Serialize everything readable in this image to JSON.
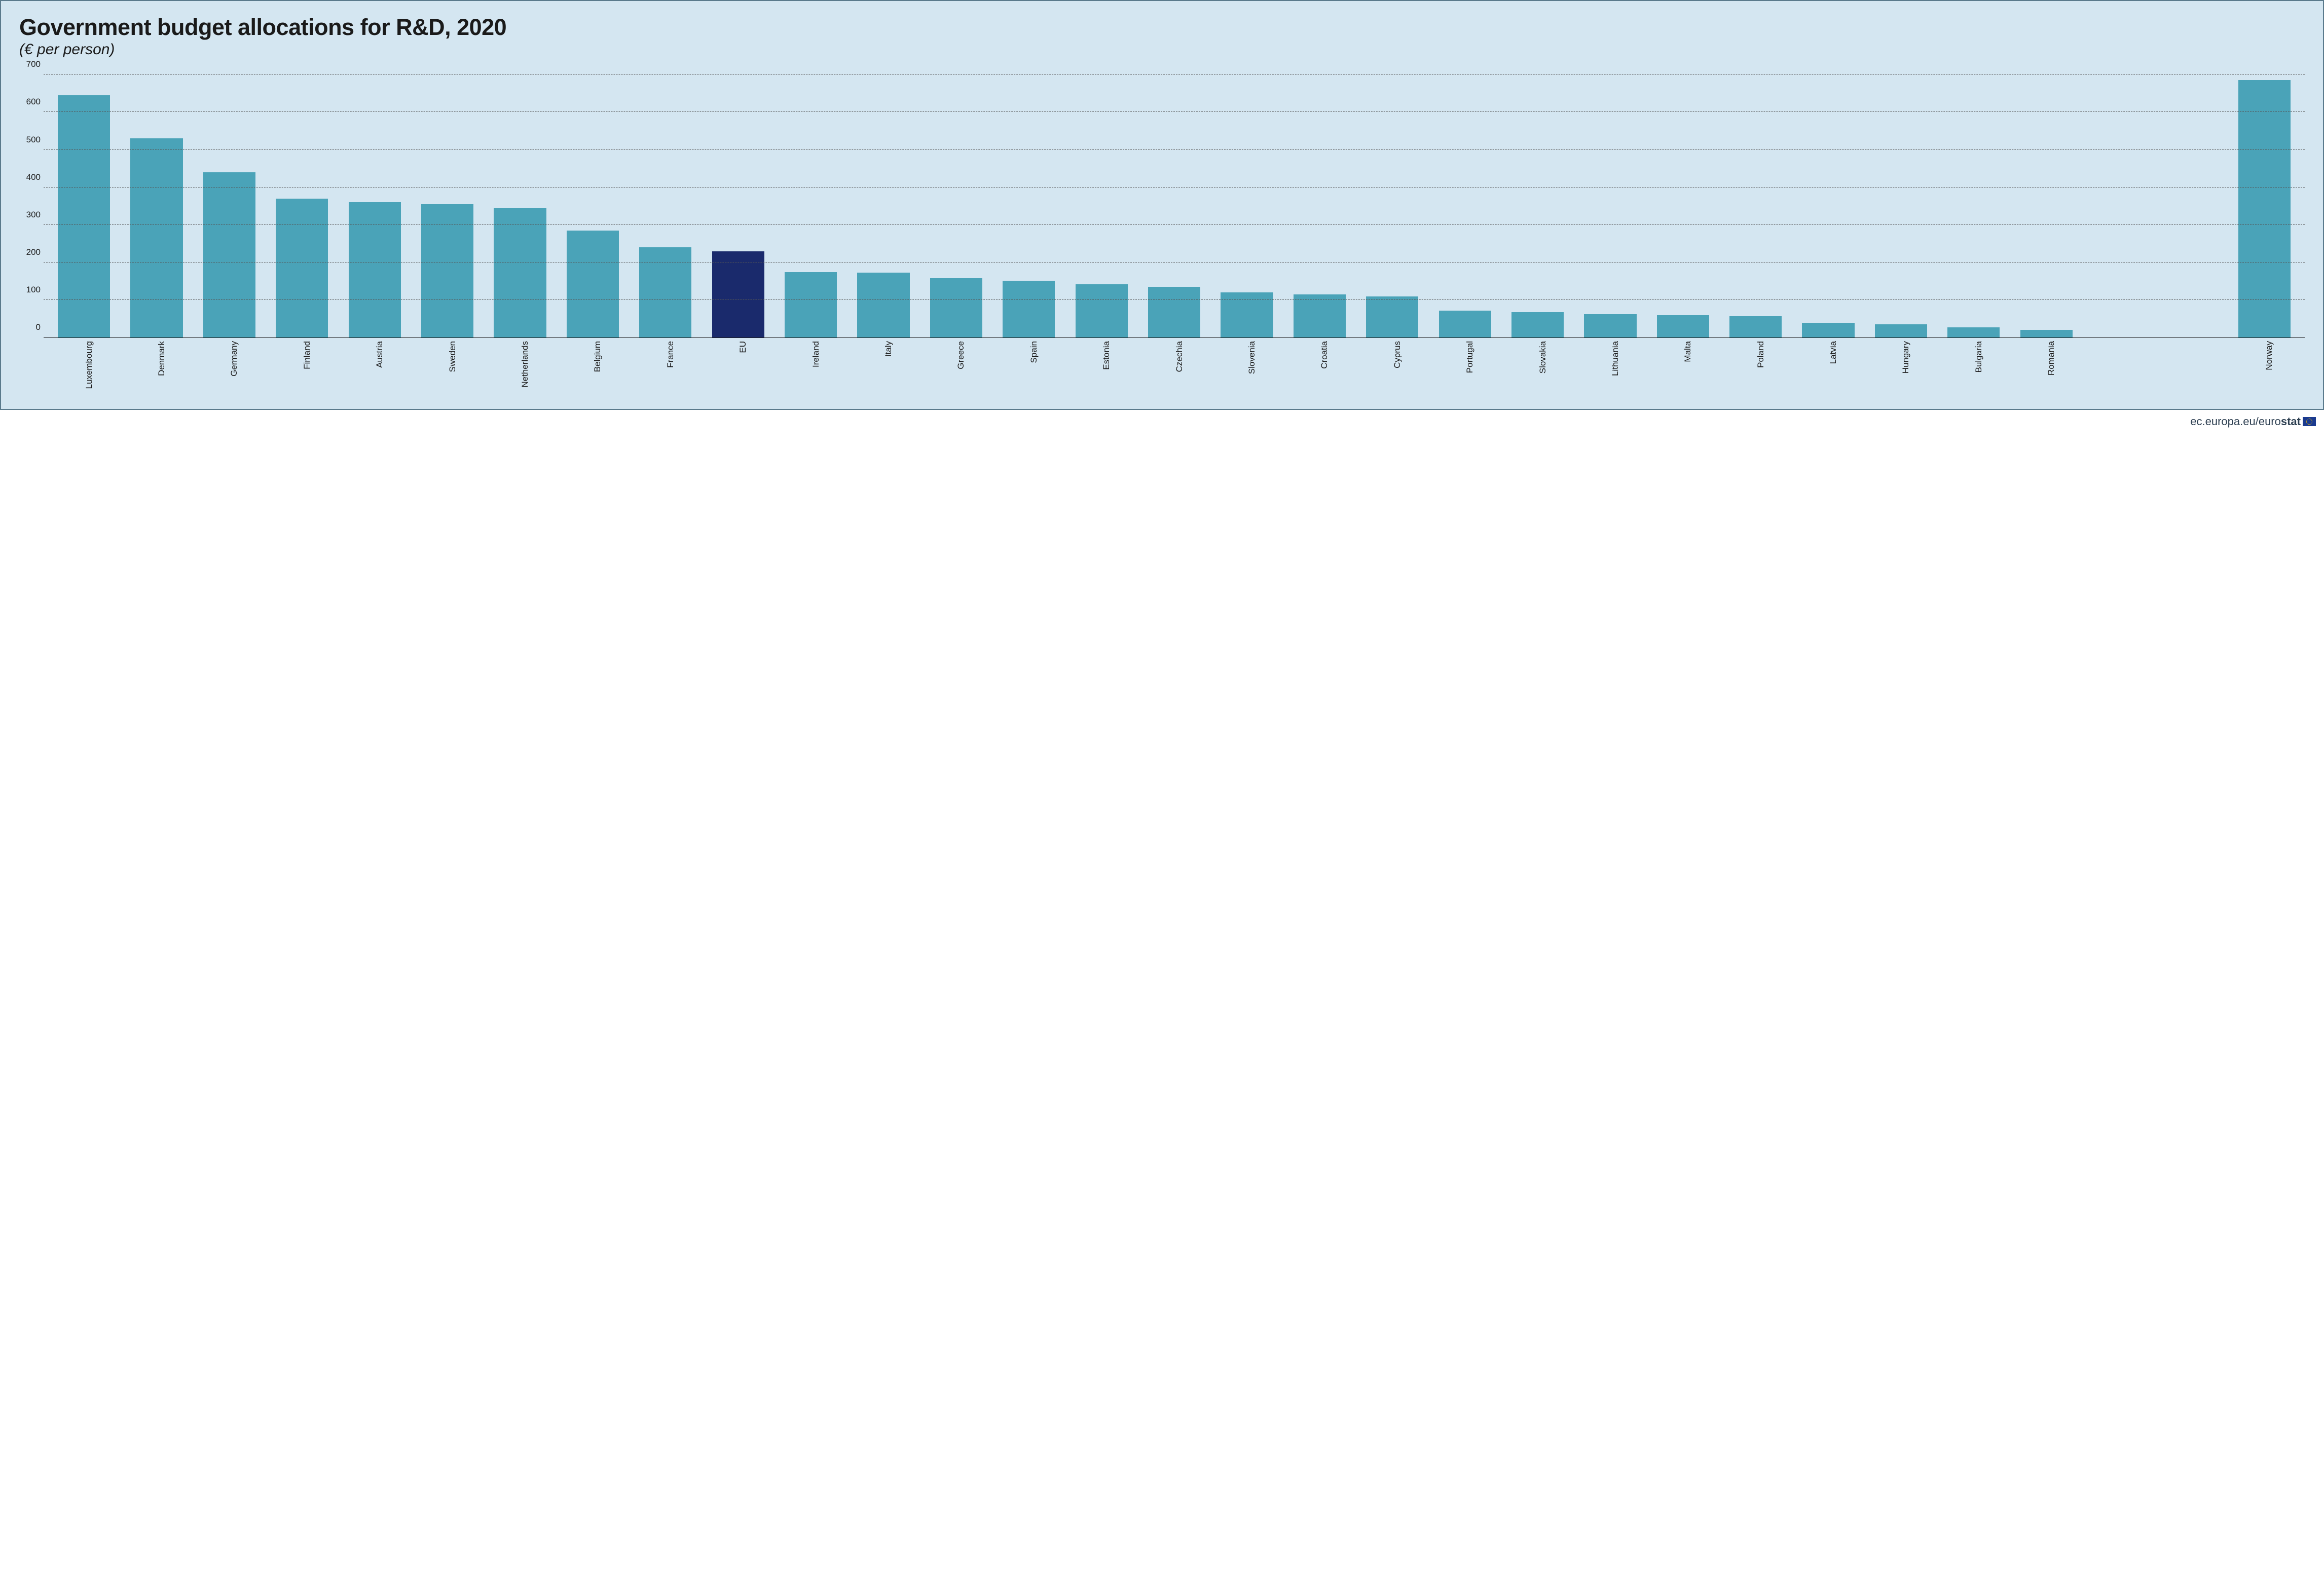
{
  "chart": {
    "type": "bar",
    "title": "Government budget allocations for R&D, 2020",
    "subtitle": "(€ per person)",
    "title_fontsize": 45,
    "subtitle_fontsize": 30,
    "background_color": "#d4e6f1",
    "border_color": "#5a7a8c",
    "axis_color": "#1a1a1a",
    "grid_color": "#555555",
    "grid_dash": "dashed",
    "label_fontsize": 17,
    "ylim": [
      0,
      700
    ],
    "ytick_step": 100,
    "yticks": [
      0,
      100,
      200,
      300,
      400,
      500,
      600,
      700
    ],
    "bar_width": 0.72,
    "default_bar_color": "#4aa3b8",
    "highlight_bar_color": "#1a2a6c",
    "series": [
      {
        "label": "Luxembourg",
        "value": 645,
        "highlight": false,
        "gap_before": false
      },
      {
        "label": "Denmark",
        "value": 530,
        "highlight": false,
        "gap_before": false
      },
      {
        "label": "Germany",
        "value": 440,
        "highlight": false,
        "gap_before": false
      },
      {
        "label": "Finland",
        "value": 370,
        "highlight": false,
        "gap_before": false
      },
      {
        "label": "Austria",
        "value": 360,
        "highlight": false,
        "gap_before": false
      },
      {
        "label": "Sweden",
        "value": 355,
        "highlight": false,
        "gap_before": false
      },
      {
        "label": "Netherlands",
        "value": 345,
        "highlight": false,
        "gap_before": false
      },
      {
        "label": "Belgium",
        "value": 285,
        "highlight": false,
        "gap_before": false
      },
      {
        "label": "France",
        "value": 240,
        "highlight": false,
        "gap_before": false
      },
      {
        "label": "EU",
        "value": 230,
        "highlight": true,
        "gap_before": false
      },
      {
        "label": "Ireland",
        "value": 175,
        "highlight": false,
        "gap_before": false
      },
      {
        "label": "Italy",
        "value": 173,
        "highlight": false,
        "gap_before": false
      },
      {
        "label": "Greece",
        "value": 158,
        "highlight": false,
        "gap_before": false
      },
      {
        "label": "Spain",
        "value": 152,
        "highlight": false,
        "gap_before": false
      },
      {
        "label": "Estonia",
        "value": 142,
        "highlight": false,
        "gap_before": false
      },
      {
        "label": "Czechia",
        "value": 135,
        "highlight": false,
        "gap_before": false
      },
      {
        "label": "Slovenia",
        "value": 120,
        "highlight": false,
        "gap_before": false
      },
      {
        "label": "Croatia",
        "value": 115,
        "highlight": false,
        "gap_before": false
      },
      {
        "label": "Cyprus",
        "value": 110,
        "highlight": false,
        "gap_before": false
      },
      {
        "label": "Portugal",
        "value": 72,
        "highlight": false,
        "gap_before": false
      },
      {
        "label": "Slovakia",
        "value": 68,
        "highlight": false,
        "gap_before": false
      },
      {
        "label": "Lithuania",
        "value": 63,
        "highlight": false,
        "gap_before": false
      },
      {
        "label": "Malta",
        "value": 60,
        "highlight": false,
        "gap_before": false
      },
      {
        "label": "Poland",
        "value": 57,
        "highlight": false,
        "gap_before": false
      },
      {
        "label": "Latvia",
        "value": 40,
        "highlight": false,
        "gap_before": false
      },
      {
        "label": "Hungary",
        "value": 35,
        "highlight": false,
        "gap_before": false
      },
      {
        "label": "Bulgaria",
        "value": 28,
        "highlight": false,
        "gap_before": false
      },
      {
        "label": "Romania",
        "value": 20,
        "highlight": false,
        "gap_before": false
      },
      {
        "label": "Norway",
        "value": 685,
        "highlight": false,
        "gap_before": true
      }
    ]
  },
  "footer": {
    "url_prefix": "ec.europa.eu/",
    "brand_left": "euro",
    "brand_right": "stat"
  }
}
